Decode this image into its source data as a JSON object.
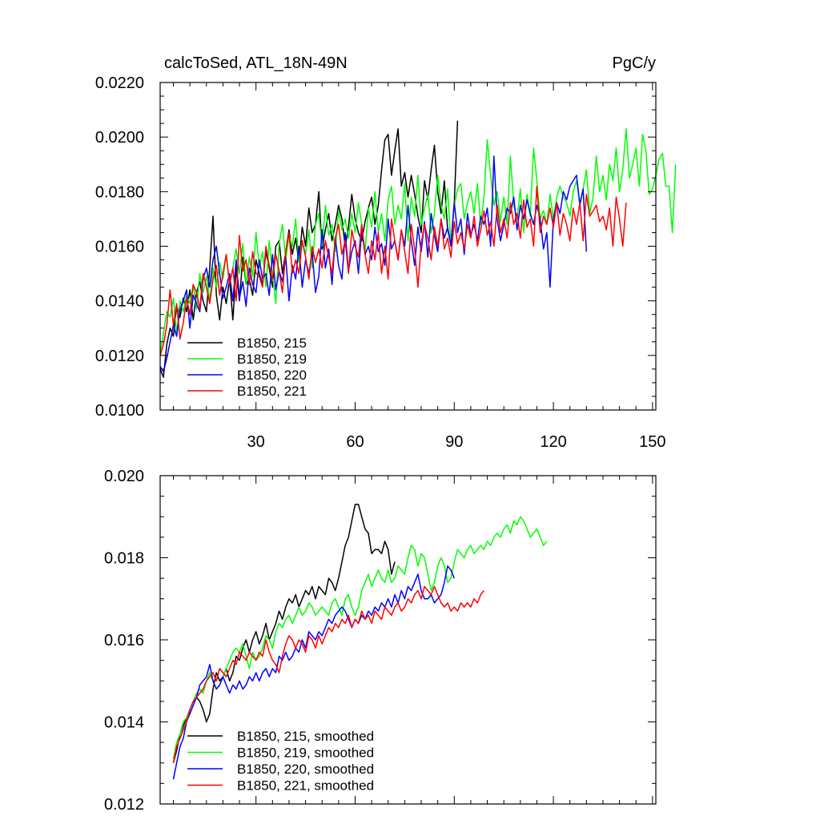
{
  "chart_data": [
    {
      "type": "line",
      "title": "calcToSed, ATL_18N-49N",
      "units": "PgC/y",
      "xlim": [
        1,
        151
      ],
      "ylim": [
        0.01,
        0.022
      ],
      "xticks": [
        30,
        60,
        90,
        120,
        150
      ],
      "yticks": [
        "0.0100",
        "0.0120",
        "0.0140",
        "0.0160",
        "0.0180",
        "0.0200",
        "0.0220"
      ],
      "yminor": 0.0005,
      "xminor": 5,
      "legend": {
        "position": "lower-left"
      },
      "series": [
        {
          "name": "B1850, 215",
          "color": "#000000",
          "x_start": 1,
          "values": [
            0.0115,
            0.0112,
            0.0124,
            0.013,
            0.0127,
            0.0138,
            0.0134,
            0.0141,
            0.0136,
            0.0144,
            0.0133,
            0.0143,
            0.0147,
            0.014,
            0.0136,
            0.0152,
            0.0171,
            0.0142,
            0.0133,
            0.0145,
            0.0139,
            0.0148,
            0.0133,
            0.0152,
            0.014,
            0.0156,
            0.0146,
            0.0148,
            0.0142,
            0.0155,
            0.015,
            0.0146,
            0.0158,
            0.0152,
            0.0145,
            0.016,
            0.0162,
            0.015,
            0.0158,
            0.0166,
            0.0157,
            0.0163,
            0.0154,
            0.0167,
            0.016,
            0.0174,
            0.0165,
            0.0168,
            0.018,
            0.0159,
            0.0166,
            0.0172,
            0.0162,
            0.0168,
            0.0175,
            0.017,
            0.016,
            0.0167,
            0.0179,
            0.017,
            0.0165,
            0.0162,
            0.0169,
            0.0174,
            0.0178,
            0.0168,
            0.0175,
            0.0188,
            0.0199,
            0.0201,
            0.0186,
            0.0195,
            0.0203,
            0.0182,
            0.0187,
            0.0178,
            0.0186,
            0.0179,
            0.0171,
            0.0165,
            0.0184,
            0.0177,
            0.0188,
            0.0197,
            0.018,
            0.0172,
            0.0184,
            0.0166,
            0.0161,
            0.0176,
            0.0206
          ]
        },
        {
          "name": "B1850, 219",
          "color": "#00ff00",
          "x_start": 1,
          "values": [
            0.0121,
            0.0128,
            0.0136,
            0.0134,
            0.0141,
            0.0128,
            0.014,
            0.0136,
            0.0142,
            0.0139,
            0.0146,
            0.0137,
            0.015,
            0.0143,
            0.0149,
            0.014,
            0.0152,
            0.0145,
            0.0154,
            0.0148,
            0.0157,
            0.0146,
            0.0152,
            0.0159,
            0.015,
            0.0161,
            0.0146,
            0.0156,
            0.0149,
            0.0165,
            0.0152,
            0.0158,
            0.0145,
            0.0162,
            0.015,
            0.0139,
            0.0161,
            0.0168,
            0.0155,
            0.0164,
            0.016,
            0.017,
            0.0154,
            0.0162,
            0.0157,
            0.0166,
            0.0152,
            0.0168,
            0.0172,
            0.016,
            0.0175,
            0.0164,
            0.0168,
            0.0158,
            0.0173,
            0.0166,
            0.017,
            0.0163,
            0.0172,
            0.0165,
            0.0176,
            0.0168,
            0.0158,
            0.0174,
            0.0167,
            0.018,
            0.0165,
            0.0172,
            0.0162,
            0.0177,
            0.0182,
            0.0168,
            0.0175,
            0.017,
            0.0183,
            0.0162,
            0.0178,
            0.0171,
            0.0186,
            0.0168,
            0.0174,
            0.0179,
            0.0165,
            0.0172,
            0.0186,
            0.0175,
            0.017,
            0.0181,
            0.016,
            0.0175,
            0.0181,
            0.0183,
            0.017,
            0.0176,
            0.018,
            0.0172,
            0.0183,
            0.0168,
            0.0178,
            0.0199,
            0.0186,
            0.0175,
            0.018,
            0.0169,
            0.0178,
            0.0168,
            0.0193,
            0.0175,
            0.017,
            0.0181,
            0.0165,
            0.0179,
            0.0171,
            0.0196,
            0.0184,
            0.017,
            0.0173,
            0.0168,
            0.0179,
            0.017,
            0.0178,
            0.0182,
            0.0178,
            0.0176,
            0.0171,
            0.018,
            0.0184,
            0.0176,
            0.0181,
            0.0188,
            0.0172,
            0.0178,
            0.0193,
            0.018,
            0.0186,
            0.0177,
            0.019,
            0.0184,
            0.0196,
            0.018,
            0.0188,
            0.0203,
            0.0185,
            0.019,
            0.0196,
            0.0182,
            0.0201,
            0.0195,
            0.0179,
            0.0181,
            0.0186,
            0.0192,
            0.0194,
            0.0182,
            0.0182,
            0.0165,
            0.019
          ]
        },
        {
          "name": "B1850, 220",
          "color": "#0000ff",
          "x_start": 1,
          "values": [
            0.0116,
            0.0114,
            0.0119,
            0.0125,
            0.0131,
            0.0127,
            0.0137,
            0.014,
            0.0144,
            0.013,
            0.0142,
            0.0139,
            0.0136,
            0.0148,
            0.0152,
            0.0145,
            0.0155,
            0.016,
            0.015,
            0.0141,
            0.0145,
            0.015,
            0.014,
            0.0155,
            0.0141,
            0.0147,
            0.0138,
            0.0152,
            0.0146,
            0.0143,
            0.0155,
            0.0148,
            0.015,
            0.0142,
            0.0157,
            0.0144,
            0.0151,
            0.0147,
            0.0156,
            0.014,
            0.0153,
            0.0148,
            0.016,
            0.0145,
            0.0155,
            0.015,
            0.0158,
            0.0143,
            0.0149,
            0.0166,
            0.0152,
            0.0159,
            0.0146,
            0.0163,
            0.0153,
            0.0148,
            0.0165,
            0.0151,
            0.0158,
            0.0162,
            0.015,
            0.0166,
            0.0157,
            0.016,
            0.0155,
            0.0167,
            0.0158,
            0.0161,
            0.0153,
            0.017,
            0.0159,
            0.0162,
            0.0155,
            0.0166,
            0.016,
            0.0175,
            0.0162,
            0.0153,
            0.0167,
            0.0158,
            0.0169,
            0.0156,
            0.0172,
            0.0164,
            0.0158,
            0.017,
            0.0163,
            0.0167,
            0.016,
            0.0176,
            0.0165,
            0.017,
            0.0157,
            0.0172,
            0.0164,
            0.0168,
            0.0162,
            0.0171,
            0.0168,
            0.0174,
            0.016,
            0.0193,
            0.017,
            0.0162,
            0.0168,
            0.0174,
            0.0172,
            0.0178,
            0.0166,
            0.0175,
            0.017,
            0.0177,
            0.0172,
            0.0168,
            0.0175,
            0.017,
            0.0159,
            0.0165,
            0.0145,
            0.017,
            0.0176,
            0.0172,
            0.018,
            0.0177,
            0.0182,
            0.0184,
            0.0186,
            0.0175,
            0.0181,
            0.0158
          ]
        },
        {
          "name": "B1850, 221",
          "color": "#ff0000",
          "x_start": 1,
          "values": [
            0.012,
            0.0124,
            0.0131,
            0.0144,
            0.0131,
            0.0139,
            0.0126,
            0.0132,
            0.0141,
            0.0135,
            0.0146,
            0.0143,
            0.0137,
            0.015,
            0.0145,
            0.0139,
            0.0148,
            0.0153,
            0.0142,
            0.015,
            0.0157,
            0.0146,
            0.0152,
            0.014,
            0.0164,
            0.0151,
            0.0155,
            0.0146,
            0.0158,
            0.015,
            0.0149,
            0.0145,
            0.016,
            0.0153,
            0.0148,
            0.0157,
            0.0151,
            0.0143,
            0.0158,
            0.0165,
            0.015,
            0.0155,
            0.015,
            0.0162,
            0.0156,
            0.0148,
            0.016,
            0.0154,
            0.0159,
            0.0152,
            0.0162,
            0.0156,
            0.015,
            0.0163,
            0.0168,
            0.0157,
            0.0162,
            0.015,
            0.0166,
            0.016,
            0.0156,
            0.0168,
            0.0157,
            0.015,
            0.0162,
            0.0155,
            0.0165,
            0.015,
            0.016,
            0.0148,
            0.017,
            0.0162,
            0.0155,
            0.0166,
            0.0158,
            0.015,
            0.0168,
            0.0159,
            0.0145,
            0.0161,
            0.0168,
            0.0163,
            0.0155,
            0.0167,
            0.016,
            0.017,
            0.0159,
            0.0163,
            0.0156,
            0.0169,
            0.0161,
            0.0165,
            0.0159,
            0.0168,
            0.0163,
            0.0171,
            0.016,
            0.0166,
            0.0173,
            0.0164,
            0.0169,
            0.016,
            0.0175,
            0.0165,
            0.017,
            0.0163,
            0.0176,
            0.0168,
            0.0172,
            0.0163,
            0.0177,
            0.0167,
            0.017,
            0.016,
            0.0182,
            0.0165,
            0.0171,
            0.0168,
            0.0174,
            0.0167,
            0.0176,
            0.0164,
            0.0172,
            0.0168,
            0.0162,
            0.0174,
            0.0168,
            0.0176,
            0.0162,
            0.0179,
            0.0171,
            0.0173,
            0.0175,
            0.0169,
            0.0171,
            0.0166,
            0.0174,
            0.016,
            0.0178,
            0.017,
            0.016,
            0.0176
          ]
        }
      ]
    },
    {
      "type": "line",
      "title": "",
      "units": "",
      "xlim": [
        1,
        151
      ],
      "ylim": [
        0.012,
        0.02
      ],
      "xticks": [
        30,
        60,
        90,
        120,
        150
      ],
      "xticklabels_visible": false,
      "yticks": [
        "0.012",
        "0.014",
        "0.016",
        "0.018",
        "0.020"
      ],
      "yminor": 0.0005,
      "xminor": 5,
      "legend": {
        "position": "lower-left"
      },
      "series": [
        {
          "name": "B1850, 215, smoothed",
          "color": "#000000",
          "x_start": 5,
          "values": [
            0.013,
            0.0133,
            0.0137,
            0.0139,
            0.0141,
            0.0143,
            0.0145,
            0.0146,
            0.0145,
            0.0143,
            0.014,
            0.0142,
            0.0148,
            0.0152,
            0.015,
            0.0151,
            0.0153,
            0.015,
            0.0152,
            0.0156,
            0.0155,
            0.0158,
            0.016,
            0.0157,
            0.016,
            0.0162,
            0.0159,
            0.0161,
            0.0164,
            0.016,
            0.0162,
            0.0164,
            0.0167,
            0.0165,
            0.0168,
            0.017,
            0.0169,
            0.0171,
            0.0168,
            0.017,
            0.0172,
            0.0171,
            0.0173,
            0.017,
            0.0173,
            0.0172,
            0.0171,
            0.0175,
            0.0174,
            0.0172,
            0.0175,
            0.0179,
            0.0183,
            0.0185,
            0.0189,
            0.0193,
            0.0193,
            0.019,
            0.0187,
            0.0186,
            0.0181,
            0.0182,
            0.0182,
            0.0181,
            0.0184,
            0.0182,
            0.0176,
            0.0179
          ]
        },
        {
          "name": "B1850, 219, smoothed",
          "color": "#00ff00",
          "x_start": 5,
          "values": [
            0.0131,
            0.0135,
            0.0137,
            0.014,
            0.0141,
            0.0143,
            0.0145,
            0.0147,
            0.0148,
            0.0147,
            0.015,
            0.0152,
            0.015,
            0.0148,
            0.0149,
            0.0151,
            0.0153,
            0.0155,
            0.0157,
            0.0158,
            0.0157,
            0.0159,
            0.0156,
            0.0153,
            0.0157,
            0.0155,
            0.0156,
            0.0158,
            0.0161,
            0.016,
            0.0158,
            0.0162,
            0.0164,
            0.0163,
            0.0165,
            0.0166,
            0.0164,
            0.0166,
            0.0168,
            0.0166,
            0.0167,
            0.0169,
            0.0168,
            0.0166,
            0.0167,
            0.0168,
            0.0167,
            0.0166,
            0.0169,
            0.017,
            0.0168,
            0.0166,
            0.017,
            0.0171,
            0.0168,
            0.0166,
            0.0168,
            0.0172,
            0.0174,
            0.0176,
            0.0173,
            0.0175,
            0.0177,
            0.0175,
            0.0174,
            0.0177,
            0.0174,
            0.0175,
            0.0178,
            0.0177,
            0.0176,
            0.018,
            0.0183,
            0.0182,
            0.0178,
            0.0181,
            0.018,
            0.0176,
            0.0172,
            0.0174,
            0.0178,
            0.018,
            0.0178,
            0.0174,
            0.0175,
            0.0179,
            0.0182,
            0.0181,
            0.018,
            0.0182,
            0.0183,
            0.0181,
            0.0182,
            0.0183,
            0.0182,
            0.0184,
            0.0183,
            0.0185,
            0.0186,
            0.0185,
            0.0187,
            0.0188,
            0.0186,
            0.0189,
            0.0188,
            0.019,
            0.0189,
            0.0187,
            0.0185,
            0.0186,
            0.0187,
            0.0185,
            0.0183,
            0.0184
          ]
        },
        {
          "name": "B1850, 220, smoothed",
          "color": "#0000ff",
          "x_start": 5,
          "values": [
            0.0126,
            0.013,
            0.0134,
            0.0136,
            0.014,
            0.0142,
            0.0144,
            0.0146,
            0.0149,
            0.015,
            0.0151,
            0.0154,
            0.015,
            0.0148,
            0.0149,
            0.0151,
            0.0149,
            0.0147,
            0.0149,
            0.0148,
            0.015,
            0.0148,
            0.0149,
            0.0151,
            0.015,
            0.0152,
            0.015,
            0.0152,
            0.0153,
            0.0151,
            0.0153,
            0.0152,
            0.0156,
            0.0155,
            0.0157,
            0.0155,
            0.0156,
            0.0158,
            0.0157,
            0.016,
            0.0158,
            0.0162,
            0.0161,
            0.016,
            0.0162,
            0.0161,
            0.0163,
            0.0165,
            0.0164,
            0.0166,
            0.0167,
            0.0168,
            0.0167,
            0.0165,
            0.0163,
            0.0165,
            0.0164,
            0.0166,
            0.0165,
            0.0167,
            0.0166,
            0.0168,
            0.0167,
            0.0169,
            0.0168,
            0.017,
            0.0168,
            0.0171,
            0.0169,
            0.0172,
            0.017,
            0.0173,
            0.0172,
            0.0174,
            0.0176,
            0.0172,
            0.017,
            0.017,
            0.0171,
            0.0169,
            0.017,
            0.0171,
            0.0174,
            0.0178,
            0.0177,
            0.0175
          ]
        },
        {
          "name": "B1850, 221, smoothed",
          "color": "#ff0000",
          "x_start": 5,
          "values": [
            0.013,
            0.0134,
            0.0136,
            0.0138,
            0.014,
            0.0143,
            0.0145,
            0.0146,
            0.0147,
            0.0148,
            0.015,
            0.0151,
            0.0152,
            0.015,
            0.0153,
            0.0152,
            0.0151,
            0.0153,
            0.0155,
            0.0154,
            0.0157,
            0.0156,
            0.0155,
            0.0157,
            0.0156,
            0.0155,
            0.0157,
            0.0156,
            0.016,
            0.0157,
            0.0155,
            0.0154,
            0.0152,
            0.0156,
            0.0159,
            0.0161,
            0.016,
            0.0158,
            0.016,
            0.0159,
            0.0157,
            0.0161,
            0.016,
            0.0158,
            0.0161,
            0.0159,
            0.0161,
            0.0163,
            0.0162,
            0.0164,
            0.0163,
            0.0165,
            0.0164,
            0.0166,
            0.0163,
            0.0165,
            0.0164,
            0.0167,
            0.0165,
            0.0166,
            0.0164,
            0.0167,
            0.0166,
            0.0165,
            0.0168,
            0.0167,
            0.0166,
            0.0168,
            0.0169,
            0.0167,
            0.0168,
            0.017,
            0.0169,
            0.0171,
            0.0172,
            0.017,
            0.0173,
            0.0172,
            0.0171,
            0.0173,
            0.0171,
            0.0169,
            0.0168,
            0.0169,
            0.0167,
            0.0168,
            0.0167,
            0.0169,
            0.0168,
            0.0169,
            0.0168,
            0.017,
            0.0169,
            0.0171,
            0.0172
          ]
        }
      ]
    }
  ]
}
